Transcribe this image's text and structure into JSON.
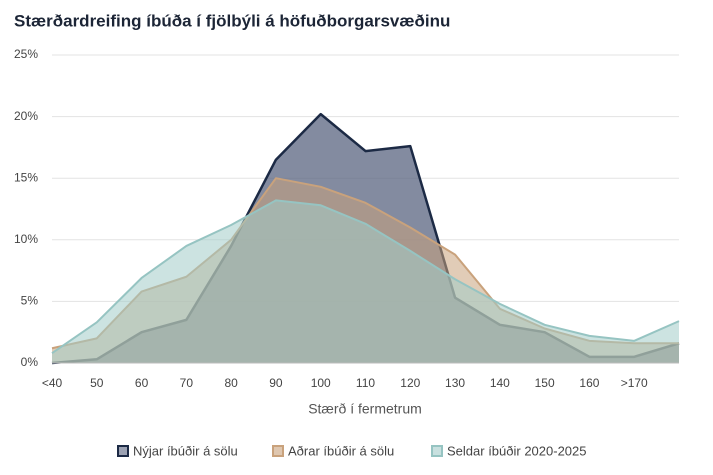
{
  "chart_data": {
    "type": "area",
    "title": "Stærðardreifing íbúða í fjölbýli á höfuðborgarsvæðinu",
    "x_label": "Stærð í fermetrum",
    "categories": [
      "<40",
      "50",
      "60",
      "70",
      "80",
      "90",
      "100",
      "110",
      "120",
      "130",
      "140",
      "150",
      "160",
      ">170",
      null
    ],
    "series": [
      {
        "name": "Nýjar íbúðir á sölu",
        "color": "#1c2a45",
        "fill": "#5a6480",
        "values": [
          0,
          0.3,
          2.5,
          3.5,
          9.5,
          16.5,
          20.2,
          17.2,
          17.6,
          5.3,
          3.1,
          2.5,
          0.5,
          0.5,
          1.6
        ]
      },
      {
        "name": "Aðrar íbúðir á sölu",
        "color": "#c9a27c",
        "fill": "#c9a27c",
        "values": [
          1.2,
          2.0,
          5.8,
          7.0,
          10.0,
          15.0,
          14.3,
          13.0,
          11.0,
          8.8,
          4.4,
          2.8,
          1.8,
          1.6,
          1.6
        ]
      },
      {
        "name": "Seldar íbúðir 2020-2025",
        "color": "#96c4c2",
        "fill": "#a3ccc9",
        "values": [
          0.8,
          3.3,
          6.9,
          9.5,
          11.2,
          13.2,
          12.8,
          11.3,
          9.1,
          6.8,
          4.8,
          3.1,
          2.2,
          1.8,
          3.4
        ]
      }
    ],
    "ylim": [
      0,
      25
    ],
    "yticks": [
      {
        "value": 0,
        "label": "0%"
      },
      {
        "value": 5,
        "label": "5%"
      },
      {
        "value": 10,
        "label": "10%"
      },
      {
        "value": 15,
        "label": "15%"
      },
      {
        "value": 20,
        "label": "20%"
      },
      {
        "value": 25,
        "label": "25%"
      }
    ],
    "grid": true,
    "legend": "bottom"
  }
}
